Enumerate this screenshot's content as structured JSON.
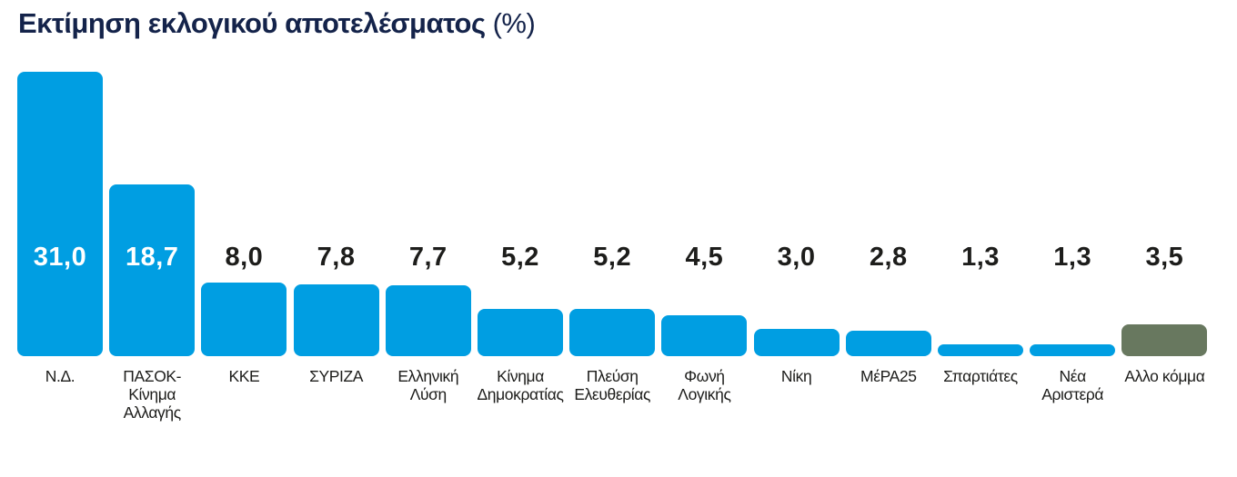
{
  "title": {
    "main": "Εκτίμηση εκλογικού αποτελέσματος",
    "suffix": "(%)"
  },
  "colors": {
    "background": "#ffffff",
    "title_navy": "#14234a",
    "bar_blue": "#009ee2",
    "bar_other_olive": "#68785f",
    "value_inside_bar": "#ffffff",
    "value_above_bar": "#1d1d1b",
    "label_text": "#1d1d1b"
  },
  "chart_data": {
    "type": "bar",
    "title": "Εκτίμηση εκλογικού αποτελέσματος (%)",
    "xlabel": "",
    "ylabel": "",
    "unit": "%",
    "ylim": [
      0,
      33
    ],
    "grid": false,
    "axes_visible": false,
    "decimal_separator": ",",
    "categories": [
      "Ν.Δ.",
      "ΠΑΣΟΚ-Κίνημα Αλλαγής",
      "ΚΚΕ",
      "ΣΥΡΙΖΑ",
      "Ελληνική Λύση",
      "Κίνημα Δημοκρατίας",
      "Πλεύση Ελευθερίας",
      "Φωνή Λογικής",
      "Νίκη",
      "ΜέΡΑ25",
      "Σπαρτιάτες",
      "Νέα Αριστερά",
      "Αλλο κόμμα"
    ],
    "values": [
      31.0,
      18.7,
      8.0,
      7.8,
      7.7,
      5.2,
      5.2,
      4.5,
      3.0,
      2.8,
      1.3,
      1.3,
      3.5
    ],
    "value_labels": [
      "31,0",
      "18,7",
      "8,0",
      "7,8",
      "7,7",
      "5,2",
      "5,2",
      "4,5",
      "3,0",
      "2,8",
      "1,3",
      "1,3",
      "3,5"
    ],
    "bars": [
      {
        "name": "nd",
        "label": "Ν.Δ.",
        "value": 31.0,
        "display": "31,0",
        "color": "#009ee2",
        "value_position": "inside"
      },
      {
        "name": "pasok",
        "label": "ΠΑΣΟΚ-\nΚίνημα\nΑλλαγής",
        "value": 18.7,
        "display": "18,7",
        "color": "#009ee2",
        "value_position": "inside"
      },
      {
        "name": "kke",
        "label": "ΚΚΕ",
        "value": 8.0,
        "display": "8,0",
        "color": "#009ee2",
        "value_position": "above"
      },
      {
        "name": "syriza",
        "label": "ΣΥΡΙΖΑ",
        "value": 7.8,
        "display": "7,8",
        "color": "#009ee2",
        "value_position": "above"
      },
      {
        "name": "elliniki-lysi",
        "label": "Ελληνική\nΛύση",
        "value": 7.7,
        "display": "7,7",
        "color": "#009ee2",
        "value_position": "above"
      },
      {
        "name": "kinima-dimokratias",
        "label": "Κίνημα\nΔημοκρατίας",
        "value": 5.2,
        "display": "5,2",
        "color": "#009ee2",
        "value_position": "above"
      },
      {
        "name": "plefsi-eleftherias",
        "label": "Πλεύση\nΕλευθερίας",
        "value": 5.2,
        "display": "5,2",
        "color": "#009ee2",
        "value_position": "above"
      },
      {
        "name": "foni-logikis",
        "label": "Φωνή\nΛογικής",
        "value": 4.5,
        "display": "4,5",
        "color": "#009ee2",
        "value_position": "above"
      },
      {
        "name": "niki",
        "label": "Νίκη",
        "value": 3.0,
        "display": "3,0",
        "color": "#009ee2",
        "value_position": "above"
      },
      {
        "name": "mera25",
        "label": "ΜέΡΑ25",
        "value": 2.8,
        "display": "2,8",
        "color": "#009ee2",
        "value_position": "above"
      },
      {
        "name": "spartiates",
        "label": "Σπαρτιάτες",
        "value": 1.3,
        "display": "1,3",
        "color": "#009ee2",
        "value_position": "above"
      },
      {
        "name": "nea-aristera",
        "label": "Νέα\nΑριστερά",
        "value": 1.3,
        "display": "1,3",
        "color": "#009ee2",
        "value_position": "above"
      },
      {
        "name": "allo-komma",
        "label": "Αλλο κόμμα",
        "value": 3.5,
        "display": "3,5",
        "color": "#68785f",
        "value_position": "above"
      }
    ]
  }
}
